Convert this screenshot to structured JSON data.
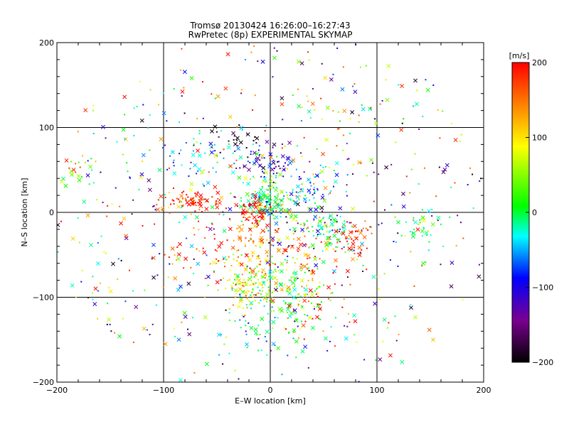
{
  "chart_data": {
    "type": "scatter",
    "title": "Tromsø 20130424 16:26:00–16:27:43",
    "subtitle": "RwPretec (8p) EXPERIMENTAL SKYMAP",
    "xlabel": "E–W location [km]",
    "ylabel": "N–S location [km]",
    "xlim": [
      -200,
      200
    ],
    "ylim": [
      -200,
      200
    ],
    "xticks": [
      "−200",
      "−100",
      "0",
      "100",
      "200"
    ],
    "yticks": [
      "−200",
      "−100",
      "0",
      "100",
      "200"
    ],
    "grid": true,
    "colorbar": {
      "label": "[m/s]",
      "range": [
        -200,
        200
      ],
      "ticks": [
        "−200",
        "−100",
        "0",
        "100",
        "200"
      ],
      "colormap": [
        "#000000",
        "#7a0090",
        "#0000ff",
        "#00ffff",
        "#00ff00",
        "#ffff00",
        "#ff8000",
        "#ff0000"
      ]
    },
    "marker_types": [
      "dot",
      "x"
    ],
    "clusters": [
      {
        "cx": 0,
        "cy": 15,
        "rx": 12,
        "ry": 12,
        "v": 20,
        "n": 120
      },
      {
        "cx": -15,
        "cy": 0,
        "rx": 8,
        "ry": 10,
        "v": 190,
        "n": 70
      },
      {
        "cx": -75,
        "cy": 12,
        "rx": 15,
        "ry": 6,
        "v": 190,
        "n": 70
      },
      {
        "cx": -20,
        "cy": -85,
        "rx": 15,
        "ry": 15,
        "v": 80,
        "n": 120
      },
      {
        "cx": 20,
        "cy": -90,
        "rx": 18,
        "ry": 20,
        "v": 40,
        "n": 90
      },
      {
        "cx": 0,
        "cy": -130,
        "rx": 20,
        "ry": 25,
        "v": 0,
        "n": 70
      },
      {
        "cx": 55,
        "cy": -20,
        "rx": 15,
        "ry": 15,
        "v": 10,
        "n": 80
      },
      {
        "cx": 75,
        "cy": -30,
        "rx": 10,
        "ry": 10,
        "v": 180,
        "n": 50
      },
      {
        "cx": 0,
        "cy": 55,
        "rx": 15,
        "ry": 10,
        "v": -90,
        "n": 60
      },
      {
        "cx": -70,
        "cy": 70,
        "rx": 30,
        "ry": 20,
        "v": -40,
        "n": 60
      },
      {
        "cx": -10,
        "cy": -45,
        "rx": 20,
        "ry": 20,
        "v": 140,
        "n": 60
      },
      {
        "cx": 40,
        "cy": 25,
        "rx": 10,
        "ry": 10,
        "v": -60,
        "n": 40
      },
      {
        "cx": 145,
        "cy": -15,
        "rx": 10,
        "ry": 10,
        "v": 10,
        "n": 30
      },
      {
        "cx": -185,
        "cy": 50,
        "rx": 8,
        "ry": 10,
        "v": 60,
        "n": 18
      },
      {
        "cx": -30,
        "cy": 85,
        "rx": 15,
        "ry": 8,
        "v": -190,
        "n": 25
      },
      {
        "cx": 60,
        "cy": 100,
        "rx": 25,
        "ry": 30,
        "v": 120,
        "n": 30
      },
      {
        "cx": -60,
        "cy": -50,
        "rx": 25,
        "ry": 20,
        "v": 180,
        "n": 40
      },
      {
        "cx": 30,
        "cy": -50,
        "rx": 20,
        "ry": 20,
        "v": 150,
        "n": 40
      },
      {
        "cx": 50,
        "cy": -100,
        "rx": 25,
        "ry": 25,
        "v": 190,
        "n": 35
      }
    ],
    "background": {
      "count": 650,
      "v_range": [
        -200,
        200
      ],
      "extent": [
        -200,
        200
      ]
    }
  }
}
